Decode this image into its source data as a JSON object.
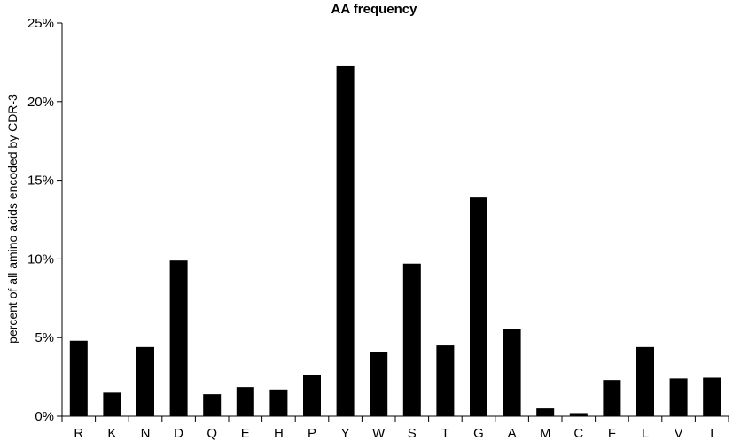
{
  "chart_data": {
    "type": "bar",
    "title": "AA frequency",
    "xlabel": "",
    "ylabel": "percent of all amino acids encoded by CDR-3",
    "categories": [
      "R",
      "K",
      "N",
      "D",
      "Q",
      "E",
      "H",
      "P",
      "Y",
      "W",
      "S",
      "T",
      "G",
      "A",
      "M",
      "C",
      "F",
      "L",
      "V",
      "I"
    ],
    "values": [
      4.8,
      1.5,
      4.4,
      9.9,
      1.4,
      1.85,
      1.7,
      2.6,
      22.3,
      4.1,
      9.7,
      4.5,
      13.9,
      5.55,
      0.5,
      0.2,
      2.3,
      4.4,
      2.4,
      2.45
    ],
    "ylim": [
      0,
      25
    ],
    "yticks": [
      0,
      5,
      10,
      15,
      20,
      25
    ],
    "ytick_labels": [
      "0%",
      "5%",
      "10%",
      "15%",
      "20%",
      "25%"
    ],
    "grid": false,
    "legend": "none",
    "bar_color": "#000000"
  }
}
